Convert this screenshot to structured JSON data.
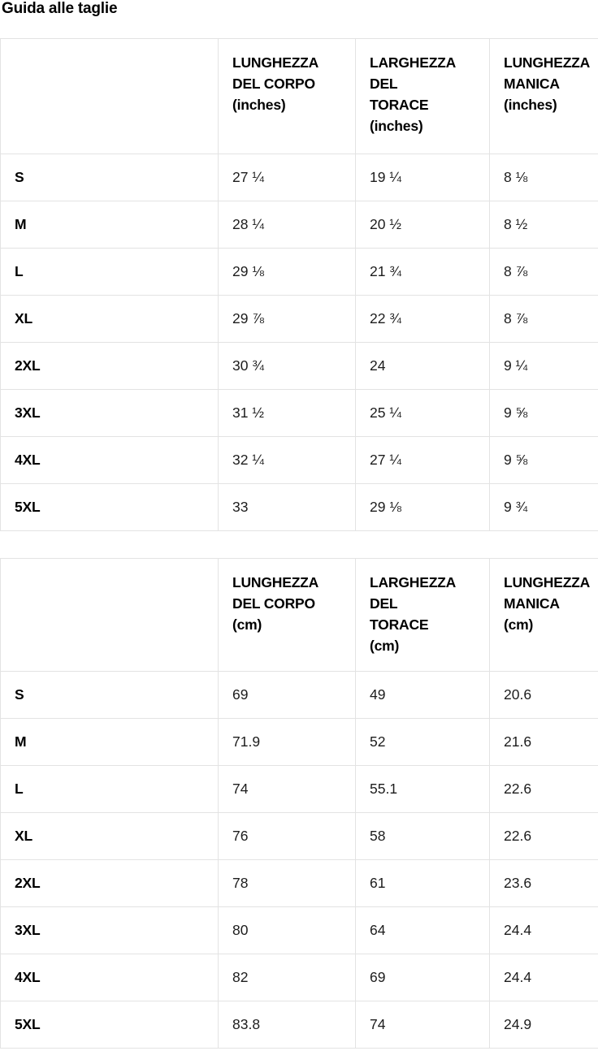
{
  "page": {
    "title": "Guida alle taglie"
  },
  "colors": {
    "background": "#ffffff",
    "border": "#e3e3e3",
    "heading_text": "#000000",
    "body_text": "#1c1c1c"
  },
  "tables": [
    {
      "id": "size-table-inches",
      "unit": "inches",
      "columns": [
        "",
        "LUNGHEZZA\nDEL CORPO\n(inches)",
        "LARGHEZZA\nDEL\nTORACE\n(inches)",
        "LUNGHEZZA\nMANICA\n(inches)"
      ],
      "rows": [
        {
          "size": "S",
          "values": [
            "27 ¼",
            "19 ¼",
            "8 ⅛"
          ]
        },
        {
          "size": "M",
          "values": [
            "28 ¼",
            "20 ½",
            "8 ½"
          ]
        },
        {
          "size": "L",
          "values": [
            "29 ⅛",
            "21 ¾",
            "8 ⅞"
          ]
        },
        {
          "size": "XL",
          "values": [
            "29 ⅞",
            "22 ¾",
            "8 ⅞"
          ]
        },
        {
          "size": "2XL",
          "values": [
            "30 ¾",
            "24",
            "9 ¼"
          ]
        },
        {
          "size": "3XL",
          "values": [
            "31 ½",
            "25 ¼",
            "9 ⅝"
          ]
        },
        {
          "size": "4XL",
          "values": [
            "32 ¼",
            "27 ¼",
            "9 ⅝"
          ]
        },
        {
          "size": "5XL",
          "values": [
            "33",
            "29 ⅛",
            "9 ¾"
          ]
        }
      ]
    },
    {
      "id": "size-table-cm",
      "unit": "cm",
      "columns": [
        "",
        "LUNGHEZZA\nDEL CORPO\n(cm)",
        "LARGHEZZA\nDEL\nTORACE\n(cm)",
        "LUNGHEZZA\nMANICA\n(cm)"
      ],
      "rows": [
        {
          "size": "S",
          "values": [
            "69",
            "49",
            "20.6"
          ]
        },
        {
          "size": "M",
          "values": [
            "71.9",
            "52",
            "21.6"
          ]
        },
        {
          "size": "L",
          "values": [
            "74",
            "55.1",
            "22.6"
          ]
        },
        {
          "size": "XL",
          "values": [
            "76",
            "58",
            "22.6"
          ]
        },
        {
          "size": "2XL",
          "values": [
            "78",
            "61",
            "23.6"
          ]
        },
        {
          "size": "3XL",
          "values": [
            "80",
            "64",
            "24.4"
          ]
        },
        {
          "size": "4XL",
          "values": [
            "82",
            "69",
            "24.4"
          ]
        },
        {
          "size": "5XL",
          "values": [
            "83.8",
            "74",
            "24.9"
          ]
        }
      ]
    }
  ]
}
